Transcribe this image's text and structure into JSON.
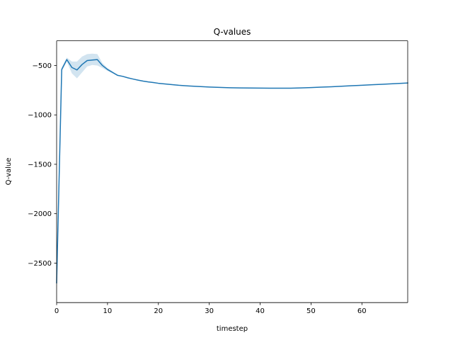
{
  "chart_data": {
    "type": "line",
    "title": "Q-values",
    "xlabel": "timestep",
    "ylabel": "Q-value",
    "xlim": [
      0,
      69
    ],
    "ylim": [
      -2900,
      -250
    ],
    "xticks": [
      0,
      10,
      20,
      30,
      40,
      50,
      60
    ],
    "yticks": [
      -2500,
      -2000,
      -1500,
      -1000,
      -500
    ],
    "xtick_labels": [
      "0",
      "10",
      "20",
      "30",
      "40",
      "50",
      "60"
    ],
    "ytick_labels": [
      "−2500",
      "−2000",
      "−1500",
      "−1000",
      "−500"
    ],
    "grid": false,
    "series": [
      {
        "color": "#1f77b4",
        "band_color": "#1f77b4",
        "x": [
          0,
          1,
          2,
          3,
          4,
          5,
          6,
          7,
          8,
          9,
          10,
          11,
          12,
          13,
          14,
          15,
          16,
          17,
          18,
          19,
          20,
          22,
          24,
          26,
          28,
          30,
          32,
          34,
          36,
          38,
          40,
          42,
          44,
          46,
          48,
          50,
          52,
          54,
          56,
          58,
          60,
          62,
          64,
          66,
          69
        ],
        "y": [
          -2700,
          -540,
          -440,
          -520,
          -545,
          -490,
          -450,
          -445,
          -440,
          -500,
          -540,
          -570,
          -600,
          -610,
          -625,
          -637,
          -648,
          -658,
          -666,
          -672,
          -680,
          -690,
          -700,
          -707,
          -713,
          -718,
          -722,
          -725,
          -727,
          -728,
          -729,
          -730,
          -730,
          -730,
          -727,
          -723,
          -719,
          -715,
          -710,
          -705,
          -700,
          -695,
          -690,
          -685,
          -677
        ],
        "lower": [
          -2750,
          -560,
          -460,
          -580,
          -630,
          -570,
          -510,
          -495,
          -500,
          -525,
          -555,
          -580,
          -605,
          -615,
          -628,
          -640,
          -651,
          -661,
          -669,
          -675,
          -683,
          -693,
          -703,
          -710,
          -716,
          -721,
          -725,
          -728,
          -730,
          -731,
          -732,
          -733,
          -733,
          -733,
          -730,
          -726,
          -722,
          -718,
          -713,
          -708,
          -703,
          -698,
          -693,
          -688,
          -680
        ],
        "upper": [
          -2650,
          -520,
          -420,
          -460,
          -460,
          -410,
          -385,
          -380,
          -385,
          -475,
          -525,
          -560,
          -595,
          -605,
          -622,
          -634,
          -645,
          -655,
          -663,
          -669,
          -677,
          -687,
          -697,
          -704,
          -710,
          -715,
          -719,
          -722,
          -724,
          -725,
          -726,
          -727,
          -727,
          -727,
          -724,
          -720,
          -716,
          -712,
          -707,
          -702,
          -697,
          -692,
          -687,
          -682,
          -674
        ]
      }
    ]
  }
}
